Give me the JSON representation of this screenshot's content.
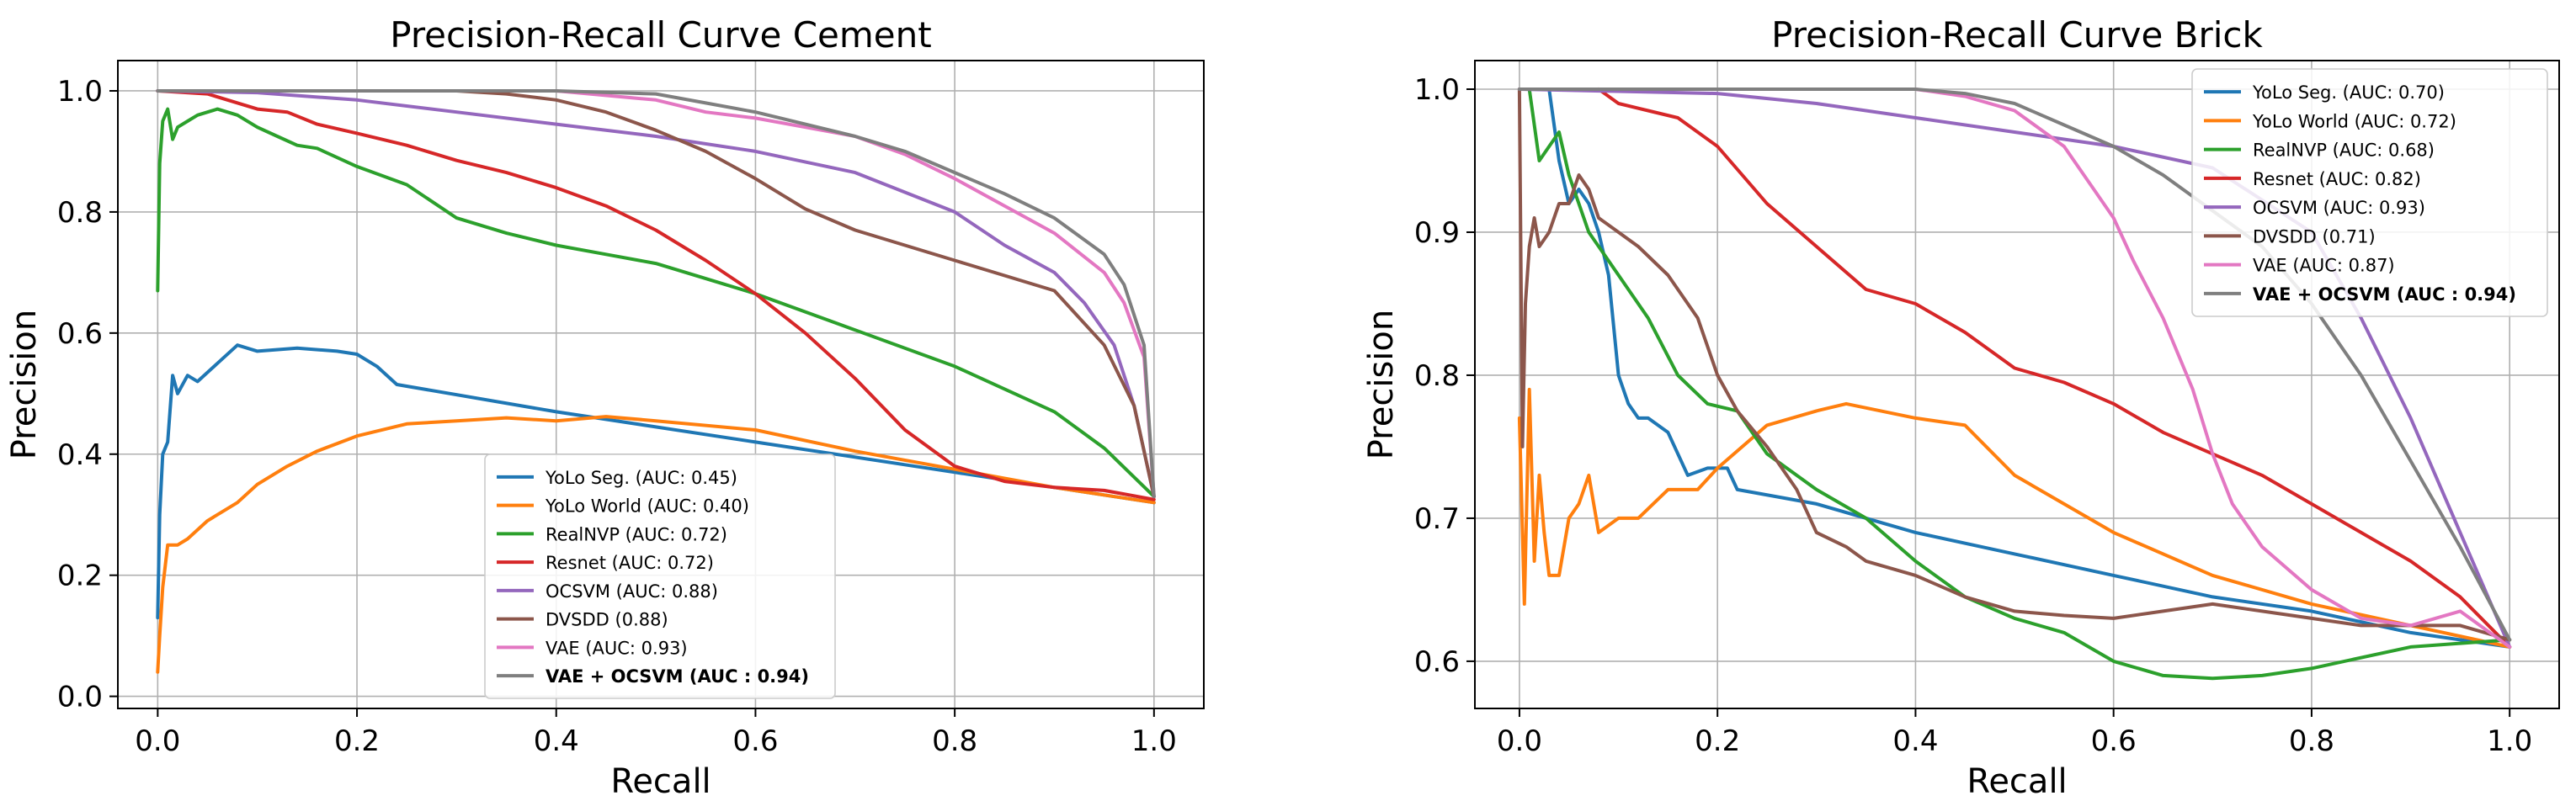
{
  "chart_data": [
    {
      "type": "line",
      "title": "Precision-Recall Curve Cement",
      "xlabel": "Recall",
      "ylabel": "Precision",
      "xlim": [
        -0.04,
        1.05
      ],
      "ylim": [
        -0.02,
        1.05
      ],
      "xticks": [
        "0.0",
        "0.2",
        "0.4",
        "0.6",
        "0.8",
        "1.0"
      ],
      "yticks": [
        "0.0",
        "0.2",
        "0.4",
        "0.6",
        "0.8",
        "1.0"
      ],
      "grid": true,
      "legend": "lower-center",
      "series": [
        {
          "name": "YoLo Seg. (AUC: 0.45)",
          "color": "#1f77b4",
          "x": [
            0,
            0.002,
            0.005,
            0.01,
            0.015,
            0.02,
            0.03,
            0.04,
            0.06,
            0.08,
            0.1,
            0.14,
            0.18,
            0.2,
            0.22,
            0.24,
            0.4,
            0.6,
            0.8,
            1.0
          ],
          "y": [
            0.13,
            0.3,
            0.4,
            0.42,
            0.53,
            0.5,
            0.53,
            0.52,
            0.55,
            0.58,
            0.57,
            0.575,
            0.57,
            0.565,
            0.545,
            0.515,
            0.47,
            0.42,
            0.37,
            0.32
          ]
        },
        {
          "name": "YoLo World (AUC: 0.40)",
          "color": "#ff7f0e",
          "x": [
            0,
            0.002,
            0.005,
            0.01,
            0.02,
            0.03,
            0.05,
            0.08,
            0.1,
            0.13,
            0.16,
            0.2,
            0.25,
            0.3,
            0.35,
            0.4,
            0.45,
            0.5,
            0.6,
            0.7,
            0.8,
            0.9,
            1.0
          ],
          "y": [
            0.04,
            0.1,
            0.18,
            0.25,
            0.25,
            0.26,
            0.29,
            0.32,
            0.35,
            0.38,
            0.405,
            0.43,
            0.45,
            0.455,
            0.46,
            0.455,
            0.462,
            0.455,
            0.44,
            0.405,
            0.375,
            0.345,
            0.32
          ]
        },
        {
          "name": "RealNVP (AUC: 0.72)",
          "color": "#2ca02c",
          "x": [
            0,
            0.002,
            0.005,
            0.01,
            0.015,
            0.02,
            0.03,
            0.04,
            0.06,
            0.08,
            0.1,
            0.12,
            0.14,
            0.16,
            0.2,
            0.25,
            0.3,
            0.35,
            0.4,
            0.45,
            0.5,
            0.55,
            0.6,
            0.7,
            0.8,
            0.9,
            0.95,
            1.0
          ],
          "y": [
            0.67,
            0.88,
            0.95,
            0.97,
            0.92,
            0.94,
            0.95,
            0.96,
            0.97,
            0.96,
            0.94,
            0.925,
            0.91,
            0.905,
            0.875,
            0.845,
            0.79,
            0.765,
            0.745,
            0.73,
            0.715,
            0.69,
            0.665,
            0.605,
            0.545,
            0.47,
            0.41,
            0.33
          ]
        },
        {
          "name": "Resnet (AUC: 0.72)",
          "color": "#d62728",
          "x": [
            0,
            0.05,
            0.1,
            0.13,
            0.16,
            0.2,
            0.25,
            0.3,
            0.35,
            0.4,
            0.45,
            0.5,
            0.55,
            0.6,
            0.65,
            0.7,
            0.75,
            0.8,
            0.85,
            0.9,
            0.95,
            1.0
          ],
          "y": [
            1.0,
            0.995,
            0.97,
            0.965,
            0.945,
            0.93,
            0.91,
            0.885,
            0.865,
            0.84,
            0.81,
            0.77,
            0.72,
            0.665,
            0.6,
            0.525,
            0.44,
            0.38,
            0.355,
            0.345,
            0.34,
            0.325
          ]
        },
        {
          "name": "OCSVM (AUC: 0.88)",
          "color": "#9467bd",
          "x": [
            0,
            0.1,
            0.2,
            0.3,
            0.4,
            0.5,
            0.6,
            0.7,
            0.8,
            0.85,
            0.9,
            0.93,
            0.96,
            0.98,
            1.0
          ],
          "y": [
            1.0,
            0.997,
            0.985,
            0.965,
            0.945,
            0.925,
            0.9,
            0.865,
            0.8,
            0.745,
            0.7,
            0.65,
            0.58,
            0.48,
            0.33
          ]
        },
        {
          "name": "DVSDD (0.88)",
          "color": "#8c564b",
          "x": [
            0,
            0.1,
            0.2,
            0.3,
            0.35,
            0.4,
            0.45,
            0.5,
            0.55,
            0.6,
            0.65,
            0.7,
            0.8,
            0.9,
            0.95,
            0.98,
            1.0
          ],
          "y": [
            1.0,
            1.0,
            1.0,
            1.0,
            0.995,
            0.985,
            0.965,
            0.935,
            0.9,
            0.855,
            0.805,
            0.77,
            0.72,
            0.67,
            0.58,
            0.48,
            0.33
          ]
        },
        {
          "name": "VAE (AUC: 0.93)",
          "color": "#e377c2",
          "x": [
            0,
            0.2,
            0.4,
            0.5,
            0.55,
            0.6,
            0.65,
            0.7,
            0.75,
            0.8,
            0.85,
            0.9,
            0.95,
            0.97,
            0.99,
            1.0
          ],
          "y": [
            1.0,
            1.0,
            1.0,
            0.985,
            0.965,
            0.955,
            0.94,
            0.925,
            0.895,
            0.855,
            0.81,
            0.765,
            0.7,
            0.65,
            0.56,
            0.33
          ]
        },
        {
          "name": "VAE + OCSVM (AUC : 0.94)",
          "color": "#7f7f7f",
          "bold": true,
          "x": [
            0,
            0.2,
            0.4,
            0.5,
            0.55,
            0.6,
            0.65,
            0.7,
            0.75,
            0.8,
            0.85,
            0.9,
            0.95,
            0.97,
            0.99,
            1.0
          ],
          "y": [
            1.0,
            1.0,
            1.0,
            0.995,
            0.98,
            0.965,
            0.945,
            0.925,
            0.9,
            0.865,
            0.83,
            0.79,
            0.73,
            0.68,
            0.58,
            0.33
          ]
        }
      ]
    },
    {
      "type": "line",
      "title": "Precision-Recall Curve Brick",
      "xlabel": "Recall",
      "ylabel": "Precision",
      "xlim": [
        -0.045,
        1.05
      ],
      "ylim": [
        0.567,
        1.02
      ],
      "xticks": [
        "0.0",
        "0.2",
        "0.4",
        "0.6",
        "0.8",
        "1.0"
      ],
      "yticks": [
        "0.6",
        "0.7",
        "0.8",
        "0.9",
        "1.0"
      ],
      "grid": true,
      "legend": "upper-right",
      "series": [
        {
          "name": "YoLo Seg. (AUC: 0.70)",
          "color": "#1f77b4",
          "x": [
            0,
            0.02,
            0.03,
            0.04,
            0.05,
            0.06,
            0.07,
            0.08,
            0.09,
            0.1,
            0.11,
            0.12,
            0.13,
            0.15,
            0.17,
            0.19,
            0.21,
            0.22,
            0.3,
            0.4,
            0.5,
            0.6,
            0.7,
            0.8,
            0.9,
            1.0
          ],
          "y": [
            1.0,
            1.0,
            1.0,
            0.95,
            0.92,
            0.93,
            0.92,
            0.9,
            0.87,
            0.8,
            0.78,
            0.77,
            0.77,
            0.76,
            0.73,
            0.735,
            0.735,
            0.72,
            0.71,
            0.69,
            0.675,
            0.66,
            0.645,
            0.635,
            0.62,
            0.61
          ]
        },
        {
          "name": "YoLo World (AUC: 0.72)",
          "color": "#ff7f0e",
          "x": [
            0,
            0.005,
            0.01,
            0.015,
            0.02,
            0.025,
            0.03,
            0.04,
            0.05,
            0.06,
            0.07,
            0.08,
            0.1,
            0.12,
            0.15,
            0.18,
            0.2,
            0.25,
            0.3,
            0.33,
            0.4,
            0.45,
            0.5,
            0.6,
            0.7,
            0.8,
            0.9,
            1.0
          ],
          "y": [
            0.77,
            0.64,
            0.79,
            0.67,
            0.73,
            0.69,
            0.66,
            0.66,
            0.7,
            0.71,
            0.73,
            0.69,
            0.7,
            0.7,
            0.72,
            0.72,
            0.735,
            0.765,
            0.775,
            0.78,
            0.77,
            0.765,
            0.73,
            0.69,
            0.66,
            0.64,
            0.625,
            0.61
          ]
        },
        {
          "name": "RealNVP (AUC: 0.68)",
          "color": "#2ca02c",
          "x": [
            0,
            0.01,
            0.02,
            0.03,
            0.04,
            0.05,
            0.07,
            0.1,
            0.13,
            0.16,
            0.19,
            0.22,
            0.25,
            0.3,
            0.35,
            0.4,
            0.45,
            0.5,
            0.55,
            0.6,
            0.65,
            0.7,
            0.75,
            0.8,
            0.9,
            1.0
          ],
          "y": [
            1.0,
            1.0,
            0.95,
            0.96,
            0.97,
            0.94,
            0.9,
            0.87,
            0.84,
            0.8,
            0.78,
            0.775,
            0.745,
            0.72,
            0.7,
            0.67,
            0.645,
            0.63,
            0.62,
            0.6,
            0.59,
            0.588,
            0.59,
            0.595,
            0.61,
            0.615
          ]
        },
        {
          "name": "Resnet (AUC: 0.82)",
          "color": "#d62728",
          "x": [
            0.08,
            0.1,
            0.13,
            0.16,
            0.2,
            0.25,
            0.3,
            0.35,
            0.4,
            0.45,
            0.5,
            0.55,
            0.6,
            0.65,
            0.7,
            0.75,
            0.8,
            0.85,
            0.9,
            0.95,
            1.0
          ],
          "y": [
            1.0,
            0.99,
            0.985,
            0.98,
            0.96,
            0.92,
            0.89,
            0.86,
            0.85,
            0.83,
            0.805,
            0.795,
            0.78,
            0.76,
            0.745,
            0.73,
            0.71,
            0.69,
            0.67,
            0.645,
            0.61
          ]
        },
        {
          "name": "OCSVM (AUC: 0.93)",
          "color": "#9467bd",
          "x": [
            0,
            0.2,
            0.3,
            0.4,
            0.5,
            0.6,
            0.7,
            0.8,
            0.85,
            0.9,
            0.95,
            1.0
          ],
          "y": [
            1.0,
            0.997,
            0.99,
            0.98,
            0.97,
            0.96,
            0.945,
            0.9,
            0.84,
            0.77,
            0.69,
            0.61
          ]
        },
        {
          "name": "DVSDD (0.71)",
          "color": "#8c564b",
          "x": [
            0,
            0.003,
            0.006,
            0.01,
            0.015,
            0.02,
            0.03,
            0.04,
            0.05,
            0.06,
            0.07,
            0.08,
            0.1,
            0.12,
            0.15,
            0.18,
            0.2,
            0.22,
            0.25,
            0.28,
            0.3,
            0.33,
            0.35,
            0.4,
            0.45,
            0.5,
            0.55,
            0.6,
            0.65,
            0.7,
            0.75,
            0.8,
            0.85,
            0.9,
            0.95,
            1.0
          ],
          "y": [
            1.0,
            0.75,
            0.85,
            0.89,
            0.91,
            0.89,
            0.9,
            0.92,
            0.92,
            0.94,
            0.93,
            0.91,
            0.9,
            0.89,
            0.87,
            0.84,
            0.8,
            0.775,
            0.75,
            0.72,
            0.69,
            0.68,
            0.67,
            0.66,
            0.645,
            0.635,
            0.632,
            0.63,
            0.635,
            0.64,
            0.635,
            0.63,
            0.625,
            0.625,
            0.625,
            0.615
          ]
        },
        {
          "name": "VAE (AUC: 0.87)",
          "color": "#e377c2",
          "x": [
            0,
            0.2,
            0.4,
            0.45,
            0.5,
            0.55,
            0.58,
            0.6,
            0.62,
            0.65,
            0.68,
            0.7,
            0.72,
            0.75,
            0.8,
            0.85,
            0.9,
            0.95,
            1.0
          ],
          "y": [
            1.0,
            1.0,
            1.0,
            0.995,
            0.985,
            0.96,
            0.93,
            0.91,
            0.88,
            0.84,
            0.79,
            0.745,
            0.71,
            0.68,
            0.65,
            0.63,
            0.625,
            0.635,
            0.61
          ]
        },
        {
          "name": "VAE + OCSVM (AUC : 0.94)",
          "color": "#7f7f7f",
          "bold": true,
          "x": [
            0,
            0.2,
            0.4,
            0.45,
            0.5,
            0.55,
            0.6,
            0.65,
            0.7,
            0.75,
            0.8,
            0.85,
            0.9,
            0.95,
            1.0
          ],
          "y": [
            1.0,
            1.0,
            1.0,
            0.997,
            0.99,
            0.975,
            0.96,
            0.94,
            0.915,
            0.89,
            0.85,
            0.8,
            0.74,
            0.68,
            0.615
          ]
        }
      ]
    }
  ]
}
